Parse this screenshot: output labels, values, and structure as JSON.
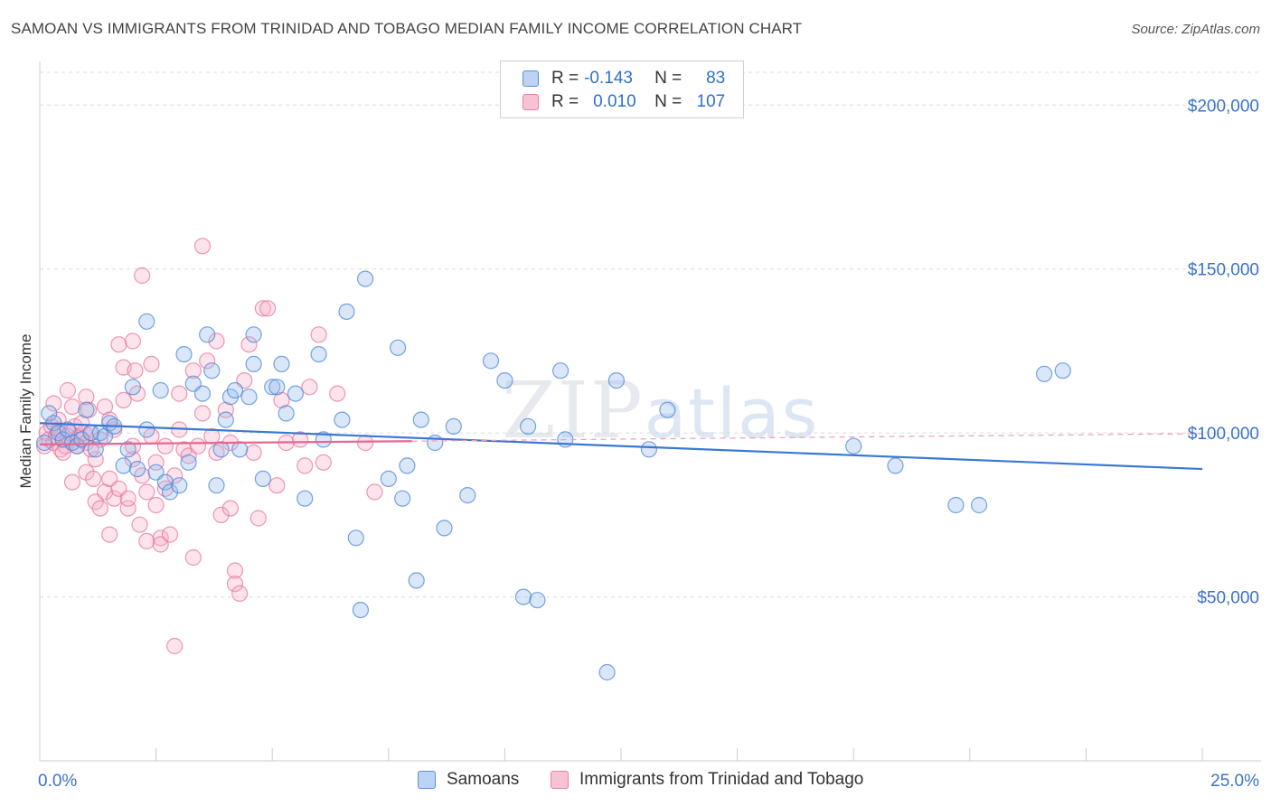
{
  "title": "SAMOAN VS IMMIGRANTS FROM TRINIDAD AND TOBAGO MEDIAN FAMILY INCOME CORRELATION CHART",
  "source": "Source: ZipAtlas.com",
  "watermark": {
    "bold": "ZIP",
    "light": "atlas"
  },
  "legend": {
    "r_label": "R =",
    "n_label": "N =",
    "rows": [
      {
        "r": "-0.143",
        "n": "83",
        "color": "#5b8fd6",
        "fill": "#bcd3f2"
      },
      {
        "r": "0.010",
        "n": "107",
        "color": "#e87fa3",
        "fill": "#f7c3d4"
      }
    ]
  },
  "bottom_legend": [
    "Samoans",
    "Immigrants from Trinidad and Tobago"
  ],
  "chart_data": {
    "type": "scatter",
    "ylabel": "Median Family Income",
    "xlabel": "",
    "x_tick_labels": [
      "0.0%",
      "25.0%"
    ],
    "y_tick_labels": [
      "$50,000",
      "$100,000",
      "$150,000",
      "$200,000"
    ],
    "xlim": [
      0,
      25
    ],
    "ylim": [
      0,
      210000
    ],
    "y_ticks": [
      50000,
      100000,
      150000,
      200000
    ],
    "grid": true,
    "series": [
      {
        "name": "Samoans",
        "color": "#4a86d8",
        "fill": "rgba(150,185,235,0.35)",
        "trend": {
          "x0": 0.0,
          "y0": 103000,
          "x1": 25.0,
          "y1": 89000
        },
        "points": [
          [
            0.2,
            106000
          ],
          [
            0.3,
            103000
          ],
          [
            0.4,
            100000
          ],
          [
            0.5,
            98000
          ],
          [
            0.6,
            101000
          ],
          [
            0.7,
            97000
          ],
          [
            0.8,
            96000
          ],
          [
            0.9,
            98000
          ],
          [
            1.0,
            107000
          ],
          [
            1.1,
            100000
          ],
          [
            1.2,
            95000
          ],
          [
            1.3,
            100000
          ],
          [
            1.4,
            99000
          ],
          [
            1.5,
            103000
          ],
          [
            1.6,
            102000
          ],
          [
            1.8,
            90000
          ],
          [
            1.9,
            95000
          ],
          [
            2.0,
            114000
          ],
          [
            2.1,
            89000
          ],
          [
            2.3,
            101000
          ],
          [
            2.3,
            134000
          ],
          [
            2.5,
            88000
          ],
          [
            2.6,
            113000
          ],
          [
            2.7,
            85000
          ],
          [
            2.8,
            82000
          ],
          [
            3.0,
            84000
          ],
          [
            3.1,
            124000
          ],
          [
            3.2,
            91000
          ],
          [
            3.3,
            115000
          ],
          [
            3.5,
            112000
          ],
          [
            3.6,
            130000
          ],
          [
            3.7,
            119000
          ],
          [
            3.8,
            84000
          ],
          [
            3.9,
            95000
          ],
          [
            4.0,
            104000
          ],
          [
            4.1,
            111000
          ],
          [
            4.2,
            113000
          ],
          [
            4.3,
            95000
          ],
          [
            4.5,
            111000
          ],
          [
            4.6,
            130000
          ],
          [
            4.6,
            121000
          ],
          [
            4.8,
            86000
          ],
          [
            5.0,
            114000
          ],
          [
            5.1,
            114000
          ],
          [
            5.2,
            121000
          ],
          [
            5.3,
            106000
          ],
          [
            5.5,
            112000
          ],
          [
            5.7,
            80000
          ],
          [
            6.0,
            124000
          ],
          [
            6.1,
            98000
          ],
          [
            6.5,
            104000
          ],
          [
            6.6,
            137000
          ],
          [
            6.8,
            68000
          ],
          [
            6.9,
            46000
          ],
          [
            7.0,
            147000
          ],
          [
            7.5,
            86000
          ],
          [
            7.7,
            126000
          ],
          [
            7.8,
            80000
          ],
          [
            7.9,
            90000
          ],
          [
            8.1,
            55000
          ],
          [
            8.2,
            104000
          ],
          [
            8.5,
            97000
          ],
          [
            8.7,
            71000
          ],
          [
            8.9,
            102000
          ],
          [
            9.2,
            81000
          ],
          [
            9.7,
            122000
          ],
          [
            10.0,
            116000
          ],
          [
            10.4,
            50000
          ],
          [
            10.5,
            102000
          ],
          [
            10.7,
            49000
          ],
          [
            11.2,
            119000
          ],
          [
            11.3,
            98000
          ],
          [
            12.2,
            27000
          ],
          [
            12.4,
            116000
          ],
          [
            13.1,
            95000
          ],
          [
            13.5,
            107000
          ],
          [
            17.5,
            96000
          ],
          [
            18.4,
            90000
          ],
          [
            19.7,
            78000
          ],
          [
            20.2,
            78000
          ],
          [
            21.6,
            118000
          ],
          [
            22.0,
            119000
          ],
          [
            0.1,
            97000
          ]
        ]
      },
      {
        "name": "Immigrants from Trinidad and Tobago",
        "color": "#e8769c",
        "fill": "rgba(245,175,200,0.35)",
        "trend": {
          "x0": 0.0,
          "y0": 96500,
          "x1": 8.0,
          "y1": 97500
        },
        "points": [
          [
            0.1,
            96000
          ],
          [
            0.15,
            100000
          ],
          [
            0.2,
            98000
          ],
          [
            0.25,
            102000
          ],
          [
            0.3,
            97000
          ],
          [
            0.35,
            99000
          ],
          [
            0.4,
            101000
          ],
          [
            0.45,
            95000
          ],
          [
            0.5,
            98000
          ],
          [
            0.55,
            96000
          ],
          [
            0.6,
            99000
          ],
          [
            0.65,
            100000
          ],
          [
            0.7,
            97000
          ],
          [
            0.75,
            102000
          ],
          [
            0.8,
            96000
          ],
          [
            0.85,
            99000
          ],
          [
            0.9,
            98000
          ],
          [
            0.95,
            100000
          ],
          [
            1.0,
            97000
          ],
          [
            0.3,
            109000
          ],
          [
            0.4,
            104000
          ],
          [
            0.6,
            113000
          ],
          [
            0.7,
            108000
          ],
          [
            0.7,
            85000
          ],
          [
            0.9,
            103000
          ],
          [
            1.0,
            88000
          ],
          [
            1.0,
            111000
          ],
          [
            1.05,
            107000
          ],
          [
            1.1,
            100000
          ],
          [
            1.15,
            86000
          ],
          [
            1.2,
            79000
          ],
          [
            1.2,
            92000
          ],
          [
            1.3,
            98000
          ],
          [
            1.3,
            77000
          ],
          [
            1.4,
            82000
          ],
          [
            1.4,
            108000
          ],
          [
            1.5,
            69000
          ],
          [
            1.5,
            86000
          ],
          [
            1.6,
            101000
          ],
          [
            1.6,
            80000
          ],
          [
            1.7,
            127000
          ],
          [
            1.7,
            83000
          ],
          [
            1.8,
            110000
          ],
          [
            1.8,
            120000
          ],
          [
            1.9,
            77000
          ],
          [
            1.9,
            80000
          ],
          [
            2.0,
            92000
          ],
          [
            2.0,
            128000
          ],
          [
            2.05,
            119000
          ],
          [
            2.1,
            112000
          ],
          [
            2.15,
            72000
          ],
          [
            2.2,
            148000
          ],
          [
            2.2,
            87000
          ],
          [
            2.3,
            67000
          ],
          [
            2.3,
            82000
          ],
          [
            2.4,
            121000
          ],
          [
            2.4,
            99000
          ],
          [
            2.5,
            91000
          ],
          [
            2.5,
            78000
          ],
          [
            2.6,
            68000
          ],
          [
            2.6,
            66000
          ],
          [
            2.7,
            96000
          ],
          [
            2.7,
            83000
          ],
          [
            2.8,
            69000
          ],
          [
            2.9,
            87000
          ],
          [
            2.9,
            35000
          ],
          [
            3.0,
            101000
          ],
          [
            3.0,
            112000
          ],
          [
            3.1,
            95000
          ],
          [
            3.2,
            93000
          ],
          [
            3.3,
            62000
          ],
          [
            3.3,
            119000
          ],
          [
            3.4,
            96000
          ],
          [
            3.5,
            157000
          ],
          [
            3.5,
            106000
          ],
          [
            3.6,
            122000
          ],
          [
            3.7,
            99000
          ],
          [
            3.8,
            128000
          ],
          [
            3.9,
            75000
          ],
          [
            4.0,
            107000
          ],
          [
            4.1,
            77000
          ],
          [
            4.1,
            97000
          ],
          [
            4.2,
            58000
          ],
          [
            4.2,
            54000
          ],
          [
            4.3,
            51000
          ],
          [
            4.4,
            116000
          ],
          [
            4.5,
            127000
          ],
          [
            4.6,
            94000
          ],
          [
            4.7,
            74000
          ],
          [
            4.8,
            138000
          ],
          [
            4.9,
            138000
          ],
          [
            5.1,
            84000
          ],
          [
            5.2,
            110000
          ],
          [
            5.3,
            97000
          ],
          [
            5.6,
            98000
          ],
          [
            5.7,
            90000
          ],
          [
            5.8,
            114000
          ],
          [
            6.0,
            130000
          ],
          [
            6.1,
            91000
          ],
          [
            6.4,
            112000
          ],
          [
            7.0,
            97000
          ],
          [
            7.2,
            82000
          ],
          [
            3.8,
            94000
          ],
          [
            2.0,
            96000
          ],
          [
            1.5,
            104000
          ],
          [
            1.1,
            95000
          ],
          [
            0.5,
            94000
          ]
        ]
      }
    ]
  }
}
